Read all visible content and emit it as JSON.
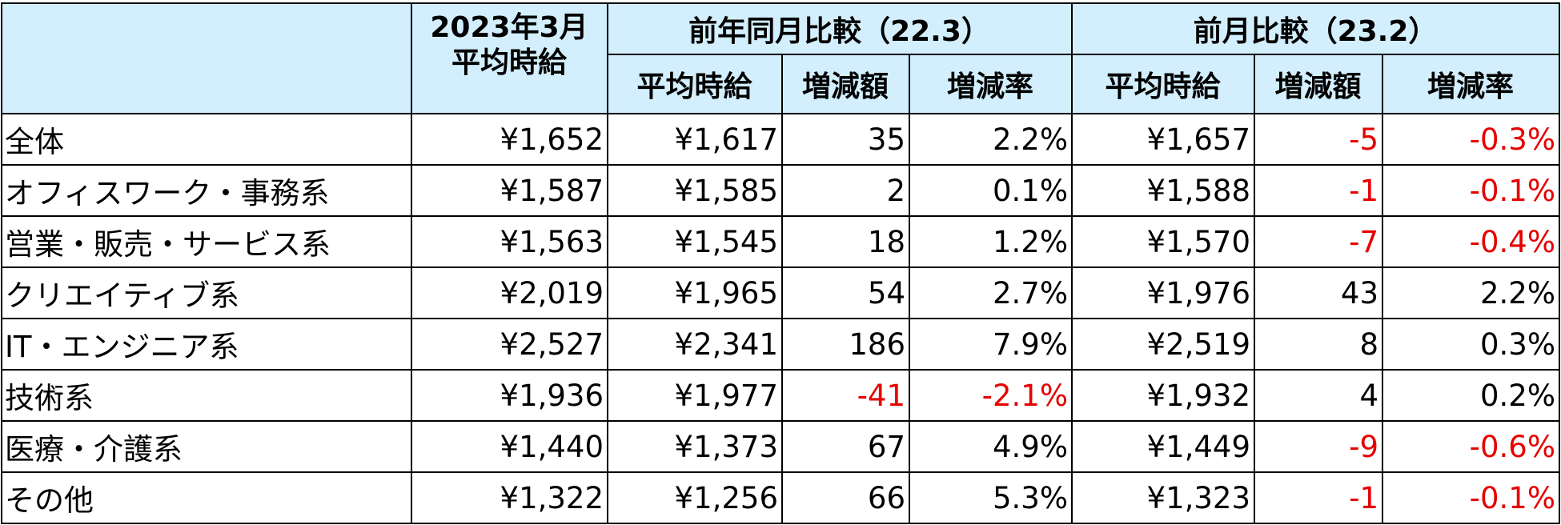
{
  "header": {
    "current": [
      "2023年3月",
      "平均時給"
    ],
    "groups": [
      "前年同月比較（22.3）",
      "前月比較（23.2）"
    ],
    "subheaders": [
      "平均時給",
      "増減額",
      "増減率",
      "平均時給",
      "増減額",
      "増減率"
    ]
  },
  "table": {
    "rows": [
      [
        "全体",
        "¥1,652",
        "¥1,617",
        "35",
        "2.2%",
        "¥1,657",
        "-5",
        "-0.3%"
      ],
      [
        "オフィスワーク・事務系",
        "¥1,587",
        "¥1,585",
        "2",
        "0.1%",
        "¥1,588",
        "-1",
        "-0.1%"
      ],
      [
        "営業・販売・サービス系",
        "¥1,563",
        "¥1,545",
        "18",
        "1.2%",
        "¥1,570",
        "-7",
        "-0.4%"
      ],
      [
        "クリエイティブ系",
        "¥2,019",
        "¥1,965",
        "54",
        "2.7%",
        "¥1,976",
        "43",
        "2.2%"
      ],
      [
        "IT・エンジニア系",
        "¥2,527",
        "¥2,341",
        "186",
        "7.9%",
        "¥2,519",
        "8",
        "0.3%"
      ],
      [
        "技術系",
        "¥1,936",
        "¥1,977",
        "-41",
        "-2.1%",
        "¥1,932",
        "4",
        "0.2%"
      ],
      [
        "医療・介護系",
        "¥1,440",
        "¥1,373",
        "67",
        "4.9%",
        "¥1,449",
        "-9",
        "-0.6%"
      ],
      [
        "その他",
        "¥1,322",
        "¥1,256",
        "66",
        "5.3%",
        "¥1,323",
        "-1",
        "-0.1%"
      ]
    ]
  }
}
